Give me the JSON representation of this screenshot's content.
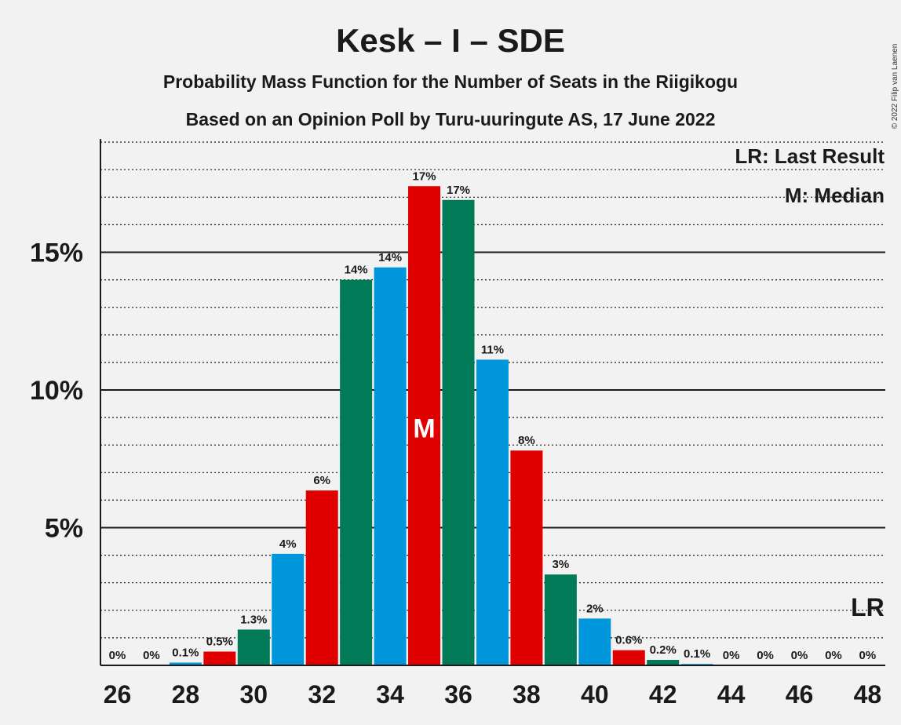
{
  "title": "Kesk – I – SDE",
  "subtitle1": "Probability Mass Function for the Number of Seats in the Riigikogu",
  "subtitle2": "Based on an Opinion Poll by Turu-uuringute AS, 17 June 2022",
  "copyright": "© 2022 Filip van Laenen",
  "legend": {
    "last_result": "LR: Last Result",
    "median": "M: Median"
  },
  "markers": {
    "median_label": "M",
    "median_seat": 35,
    "last_result_label": "LR",
    "last_result_seat": 48
  },
  "colors": {
    "green": "#007a57",
    "blue": "#0096dc",
    "red": "#e00000",
    "background": "#f2f2f2",
    "axis": "#1a1a1a"
  },
  "chart_data": {
    "type": "bar",
    "x": [
      26,
      27,
      28,
      29,
      30,
      31,
      32,
      33,
      34,
      35,
      36,
      37,
      38,
      39,
      40,
      41,
      42,
      43,
      44,
      45,
      46,
      47,
      48
    ],
    "values": [
      0,
      0,
      0.1,
      0.5,
      1.3,
      4.05,
      6.35,
      14.0,
      14.45,
      17.4,
      16.9,
      11.1,
      7.8,
      3.3,
      1.7,
      0.55,
      0.2,
      0.05,
      0,
      0,
      0,
      0,
      0
    ],
    "data_labels": [
      "0%",
      "0%",
      "0.1%",
      "0.5%",
      "1.3%",
      "4%",
      "6%",
      "14%",
      "14%",
      "17%",
      "17%",
      "11%",
      "8%",
      "3%",
      "2%",
      "0.6%",
      "0.2%",
      "0.1%",
      "0%",
      "0%",
      "0%",
      "0%",
      "0%"
    ],
    "bar_colors": [
      "blue",
      "red",
      "blue",
      "red",
      "green",
      "blue",
      "red",
      "green",
      "blue",
      "red",
      "green",
      "blue",
      "red",
      "green",
      "blue",
      "red",
      "green",
      "blue",
      "red",
      "green",
      "blue",
      "red",
      "green"
    ],
    "x_tick_values": [
      26,
      28,
      30,
      32,
      34,
      36,
      38,
      40,
      42,
      44,
      46,
      48
    ],
    "x_tick_labels": [
      "26",
      "28",
      "30",
      "32",
      "34",
      "36",
      "38",
      "40",
      "42",
      "44",
      "46",
      "48"
    ],
    "y_ticks": [
      5,
      10,
      15
    ],
    "y_tick_labels": [
      "5%",
      "10%",
      "15%"
    ],
    "y_minor_step": 1,
    "ylim": [
      0,
      19
    ],
    "grid": true,
    "legend_position": "top-right"
  }
}
